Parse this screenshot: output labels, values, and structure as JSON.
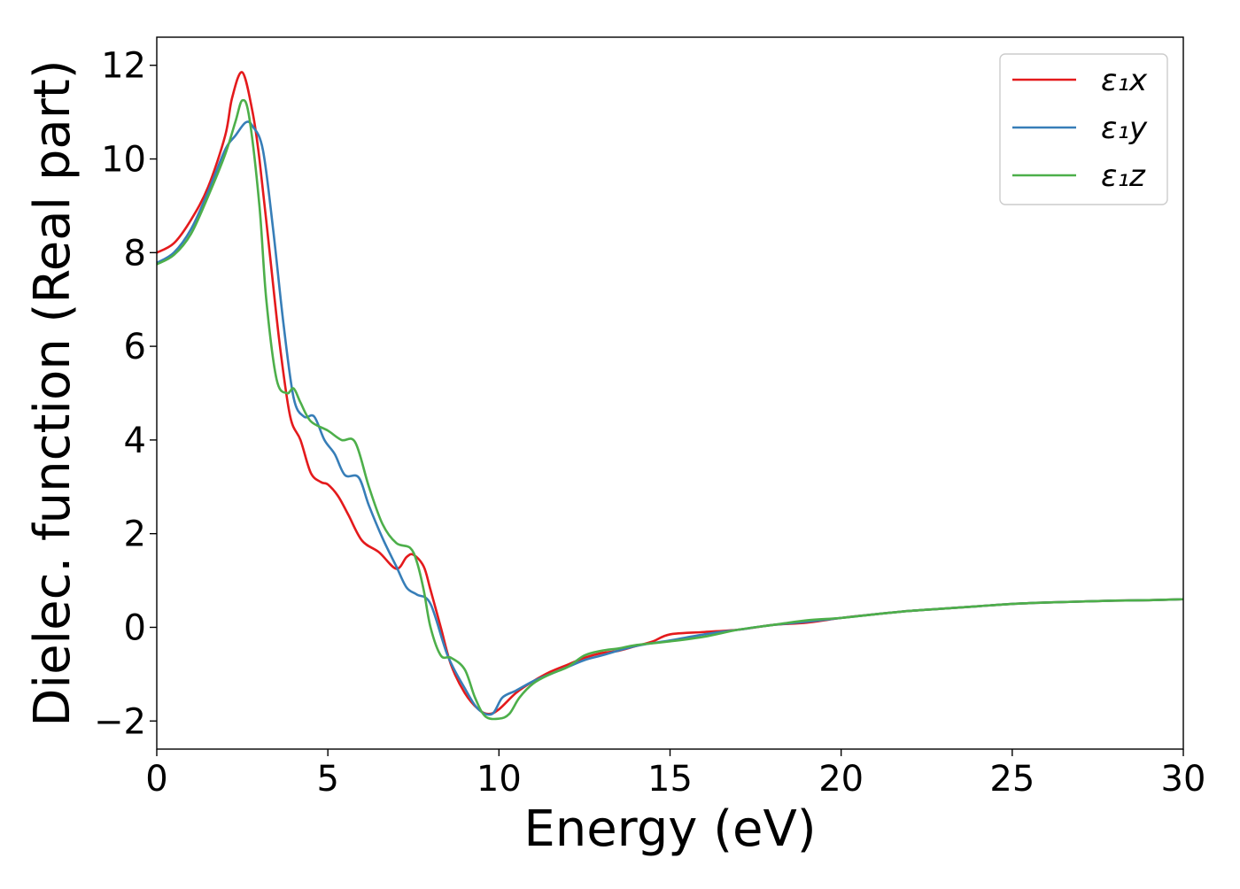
{
  "chart_data": {
    "type": "line",
    "xlabel": "Energy (eV)",
    "ylabel": "Dielec. function (Real part)",
    "xlim": [
      0,
      30
    ],
    "ylim": [
      -2.6,
      12.6
    ],
    "xticks": [
      0,
      5,
      10,
      15,
      20,
      25,
      30
    ],
    "xtick_labels": [
      "0",
      "5",
      "10",
      "15",
      "20",
      "25",
      "30"
    ],
    "yticks": [
      -2,
      0,
      2,
      4,
      6,
      8,
      10,
      12
    ],
    "ytick_labels": [
      "−2",
      "0",
      "2",
      "4",
      "6",
      "8",
      "10",
      "12"
    ],
    "grid": false,
    "legend_position": "top-right",
    "series": [
      {
        "name": "ε₁x",
        "color": "#e41a1c",
        "x": [
          0,
          0.5,
          1.0,
          1.5,
          2.0,
          2.2,
          2.5,
          2.8,
          3.0,
          3.3,
          3.6,
          3.9,
          4.2,
          4.5,
          4.8,
          5.0,
          5.3,
          5.6,
          6.0,
          6.5,
          7.0,
          7.3,
          7.5,
          7.8,
          8.0,
          8.3,
          8.6,
          9.0,
          9.4,
          9.7,
          10.0,
          10.5,
          11.0,
          11.5,
          12.0,
          12.5,
          13.0,
          13.5,
          14.0,
          14.5,
          15.0,
          16.0,
          17.0,
          18.0,
          19.0,
          20.0,
          21.0,
          22.0,
          23.0,
          24.0,
          25.0,
          26.0,
          27.0,
          28.0,
          29.0,
          30.0
        ],
        "y": [
          8.0,
          8.2,
          8.7,
          9.4,
          10.5,
          11.3,
          11.85,
          11.0,
          10.0,
          8.0,
          6.0,
          4.5,
          4.0,
          3.3,
          3.1,
          3.05,
          2.8,
          2.4,
          1.85,
          1.6,
          1.25,
          1.5,
          1.55,
          1.3,
          0.8,
          0.0,
          -0.8,
          -1.4,
          -1.75,
          -1.85,
          -1.75,
          -1.4,
          -1.15,
          -0.95,
          -0.8,
          -0.65,
          -0.55,
          -0.5,
          -0.4,
          -0.3,
          -0.15,
          -0.1,
          -0.05,
          0.05,
          0.1,
          0.2,
          0.28,
          0.35,
          0.4,
          0.45,
          0.5,
          0.53,
          0.55,
          0.57,
          0.58,
          0.6
        ]
      },
      {
        "name": "ε₁y",
        "color": "#377eb8",
        "x": [
          0,
          0.5,
          1.0,
          1.5,
          2.0,
          2.3,
          2.6,
          2.8,
          3.1,
          3.4,
          3.7,
          4.0,
          4.3,
          4.6,
          4.9,
          5.2,
          5.5,
          5.9,
          6.2,
          6.6,
          7.0,
          7.3,
          7.6,
          8.0,
          8.5,
          9.0,
          9.4,
          9.8,
          10.1,
          10.5,
          11.0,
          11.5,
          12.0,
          12.5,
          13.0,
          14.0,
          15.0,
          16.0,
          17.0,
          18.0,
          19.0,
          20.0,
          21.0,
          22.0,
          23.0,
          24.0,
          25.0,
          26.0,
          27.0,
          28.0,
          29.0,
          30.0
        ],
        "y": [
          7.78,
          8.0,
          8.5,
          9.3,
          10.2,
          10.5,
          10.78,
          10.7,
          10.2,
          8.5,
          6.5,
          4.9,
          4.5,
          4.5,
          4.0,
          3.7,
          3.25,
          3.2,
          2.6,
          1.9,
          1.3,
          0.85,
          0.7,
          0.5,
          -0.6,
          -1.3,
          -1.75,
          -1.85,
          -1.5,
          -1.35,
          -1.15,
          -1.0,
          -0.85,
          -0.7,
          -0.6,
          -0.4,
          -0.28,
          -0.15,
          -0.05,
          0.05,
          0.12,
          0.2,
          0.28,
          0.35,
          0.4,
          0.45,
          0.5,
          0.53,
          0.55,
          0.57,
          0.58,
          0.6
        ]
      },
      {
        "name": "ε₁z",
        "color": "#4daf4a",
        "x": [
          0,
          0.5,
          1.0,
          1.5,
          2.0,
          2.3,
          2.5,
          2.7,
          3.0,
          3.2,
          3.5,
          3.8,
          4.0,
          4.2,
          4.5,
          5.0,
          5.4,
          5.8,
          6.2,
          6.6,
          7.0,
          7.4,
          7.6,
          7.8,
          8.0,
          8.3,
          8.6,
          9.0,
          9.3,
          9.6,
          10.0,
          10.3,
          10.6,
          11.0,
          11.5,
          12.0,
          12.5,
          13.0,
          13.5,
          14.0,
          15.0,
          16.0,
          17.0,
          18.0,
          19.0,
          20.0,
          21.0,
          22.0,
          23.0,
          24.0,
          25.0,
          26.0,
          27.0,
          28.0,
          29.0,
          30.0
        ],
        "y": [
          7.75,
          7.95,
          8.4,
          9.2,
          10.1,
          10.8,
          11.25,
          10.9,
          9.0,
          7.0,
          5.3,
          5.0,
          5.1,
          4.8,
          4.4,
          4.2,
          4.0,
          3.95,
          3.0,
          2.2,
          1.8,
          1.7,
          1.4,
          0.8,
          0.0,
          -0.6,
          -0.65,
          -0.9,
          -1.5,
          -1.9,
          -1.95,
          -1.85,
          -1.5,
          -1.2,
          -1.0,
          -0.85,
          -0.6,
          -0.5,
          -0.45,
          -0.38,
          -0.3,
          -0.2,
          -0.05,
          0.05,
          0.15,
          0.2,
          0.28,
          0.35,
          0.4,
          0.45,
          0.5,
          0.53,
          0.55,
          0.57,
          0.58,
          0.6
        ]
      }
    ]
  }
}
